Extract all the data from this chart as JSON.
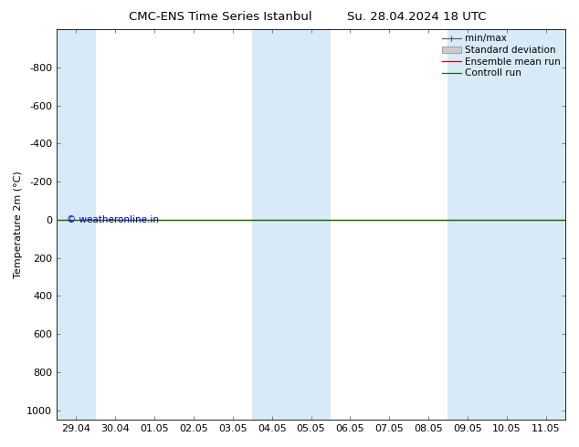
{
  "title_left": "CMC-ENS Time Series Istanbul",
  "title_right": "Su. 28.04.2024 18 UTC",
  "ylabel": "Temperature 2m (°C)",
  "ylim_bottom": -1000,
  "ylim_top": 1050,
  "yticks": [
    -800,
    -600,
    -400,
    -200,
    0,
    200,
    400,
    600,
    800,
    1000
  ],
  "xlim_left": -0.5,
  "xlim_right": 12.5,
  "xtick_labels": [
    "29.04",
    "30.04",
    "01.05",
    "02.05",
    "03.05",
    "04.05",
    "05.05",
    "06.05",
    "07.05",
    "08.05",
    "09.05",
    "10.05",
    "11.05"
  ],
  "xtick_positions": [
    0,
    1,
    2,
    3,
    4,
    5,
    6,
    7,
    8,
    9,
    10,
    11,
    12
  ],
  "band_regions": [
    {
      "x_start": -0.5,
      "x_end": 0.5,
      "color": "#d8eaf8"
    },
    {
      "x_start": 4.5,
      "x_end": 6.5,
      "color": "#d8eaf8"
    },
    {
      "x_start": 9.5,
      "x_end": 12.5,
      "color": "#d8eaf8"
    }
  ],
  "control_run_color": "#007700",
  "ensemble_mean_color": "#dd0000",
  "watermark_text": "© weatheronline.in",
  "watermark_color": "#0000cc",
  "background_color": "#ffffff",
  "plot_bg_color": "#ffffff",
  "font_size": 8,
  "title_font_size": 9.5,
  "legend_fontsize": 7.5
}
